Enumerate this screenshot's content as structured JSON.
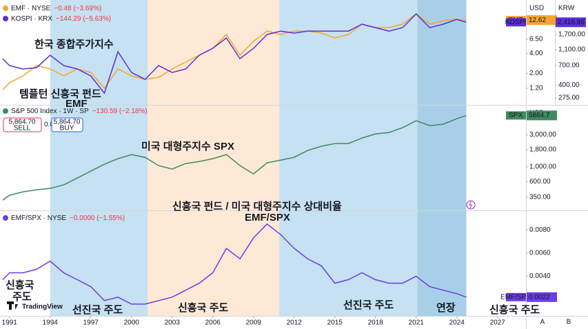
{
  "time_axis": {
    "xlim": [
      1990.3,
      2029.1
    ],
    "xticks": [
      1991,
      1994,
      1997,
      2000,
      2003,
      2006,
      2009,
      2012,
      2015,
      2018,
      2021,
      2024,
      2027
    ],
    "bands": [
      {
        "from": 1994.0,
        "to": 2001.2,
        "color": "#c6e1f1"
      },
      {
        "from": 2001.2,
        "to": 2010.9,
        "color": "#fde9d6"
      },
      {
        "from": 2010.9,
        "to": 2021.1,
        "color": "#c6e1f1"
      },
      {
        "from": 2021.1,
        "to": 2024.7,
        "color": "#a9cfe8"
      }
    ]
  },
  "chart_data": [
    {
      "type": "line",
      "log_scale": true,
      "y_unit": "USD",
      "y2_unit": "KRW",
      "x": [
        1990.5,
        1991,
        1992,
        1993,
        1994,
        1995,
        1996,
        1997,
        1998,
        1999,
        2000,
        2001,
        2002,
        2003,
        2004,
        2005,
        2006,
        2007,
        2008,
        2009,
        2010,
        2011,
        2012,
        2013,
        2014,
        2015,
        2016,
        2017,
        2018,
        2019,
        2020,
        2021,
        2022,
        2023,
        2024,
        2024.7
      ],
      "ylim": [
        0.71,
        23.5
      ],
      "yticks": [
        {
          "value": 6.5,
          "label": "6.50"
        },
        {
          "value": 4,
          "label": "4.00"
        },
        {
          "value": 2,
          "label": "2.00"
        },
        {
          "value": 1.2,
          "label": "1.20"
        }
      ],
      "y2lim": [
        235,
        4316
      ],
      "y2ticks": [
        {
          "value": 1700,
          "label": "1,700.00"
        },
        {
          "value": 1100,
          "label": "1,100.00"
        },
        {
          "value": 700,
          "label": "700.00"
        },
        {
          "value": 400,
          "label": "400.00"
        },
        {
          "value": 275,
          "label": "275.00"
        }
      ],
      "series": [
        {
          "name": "EMF · NYSE",
          "tag": "EMF",
          "change": "−0.48 (−3.69%)",
          "color": "#f5a52c",
          "values": [
            1.14,
            1.45,
            1.84,
            2.63,
            2.34,
            1.84,
            2.34,
            2.07,
            1.2,
            2.34,
            1.84,
            1.63,
            1.75,
            2.34,
            2.96,
            3.76,
            4.77,
            7.68,
            3.76,
            6.05,
            8.65,
            7.68,
            8.65,
            8.65,
            8.05,
            6.82,
            7.68,
            10.98,
            9.74,
            9.74,
            10.98,
            15.7,
            10.98,
            12.4,
            13.0,
            12.62
          ]
        },
        {
          "name": "KOSPI · KRX",
          "tag": "KOSPI",
          "change": "−144.29 (−5.63%)",
          "color": "#5b2fd9",
          "axis": "y2",
          "last_label": "2,416.86",
          "values": [
            850,
            697,
            632,
            657,
            939,
            697,
            632,
            518,
            316,
            1037,
            572,
            469,
            697,
            572,
            632,
            939,
            1144,
            1540,
            850,
            1144,
            1700,
            1877,
            1769,
            1877,
            1877,
            1877,
            1877,
            2288,
            2072,
            1877,
            2072,
            3079,
            2072,
            2288,
            2628,
            2416.86
          ]
        }
      ]
    },
    {
      "type": "line",
      "log_scale": true,
      "y_unit": "USD",
      "x": [
        1990.5,
        1991,
        1992,
        1993,
        1994,
        1995,
        1996,
        1997,
        1998,
        1999,
        2000,
        2001,
        2002,
        2003,
        2004,
        2005,
        2006,
        2007,
        2008,
        2009,
        2010,
        2011,
        2012,
        2013,
        2014,
        2015,
        2016,
        2017,
        2018,
        2019,
        2020,
        2021,
        2022,
        2023,
        2024,
        2024.7
      ],
      "ylim": [
        234,
        7865
      ],
      "yticks": [
        {
          "value": 3000,
          "label": "3,000.00"
        },
        {
          "value": 1800,
          "label": "1,800.00"
        },
        {
          "value": 1000,
          "label": "1,000.00"
        },
        {
          "value": 600,
          "label": "600.00"
        },
        {
          "value": 350,
          "label": "350.00"
        }
      ],
      "trade": {
        "sell_price": "5,864.70",
        "sell": "SELL",
        "spread": "0.00",
        "buy_price": "5,864.70",
        "buy": "BUY"
      },
      "series": [
        {
          "name": "S&P 500 Index · 1W · SP",
          "tag": "SPX",
          "change": "−130.59 (−2.18%)",
          "color": "#3f8a5f",
          "values": [
            318,
            375,
            423,
            454,
            476,
            536,
            680,
            862,
            1093,
            1322,
            1525,
            1386,
            1043,
            926,
            1119,
            1202,
            1322,
            1525,
            1043,
            784,
            1147,
            1260,
            1386,
            1757,
            2027,
            2229,
            2229,
            2696,
            3108,
            3260,
            3849,
            4883,
            4134,
            4335,
            5242,
            5864.7
          ]
        }
      ]
    },
    {
      "type": "line",
      "log_scale": false,
      "x": [
        1990.5,
        1991,
        1992,
        1993,
        1994,
        1995,
        1996,
        1997,
        1998,
        1999,
        2000,
        2001,
        2002,
        2003,
        2004,
        2005,
        2006,
        2007,
        2008,
        2009,
        2010,
        2011,
        2012,
        2013,
        2014,
        2015,
        2016,
        2017,
        2018,
        2019,
        2020,
        2021,
        2022,
        2023,
        2024,
        2024.7
      ],
      "ylim": [
        0.0007,
        0.0095
      ],
      "yticks": [
        {
          "value": 0.008,
          "label": "0.0080"
        },
        {
          "value": 0.006,
          "label": "0.0060"
        },
        {
          "value": 0.004,
          "label": "0.0040"
        }
      ],
      "series": [
        {
          "name": "EMF/SPX · NYSE",
          "tag": "EMF/SPX",
          "change": "−0.0000 (−1.55%)",
          "color": "#6a3de8",
          "values": [
            0.0037,
            0.0043,
            0.0043,
            0.0046,
            0.0053,
            0.0043,
            0.0037,
            0.0031,
            0.0019,
            0.0022,
            0.0016,
            0.0016,
            0.0019,
            0.0022,
            0.0028,
            0.0034,
            0.0043,
            0.0064,
            0.0055,
            0.0073,
            0.0085,
            0.0076,
            0.0064,
            0.0055,
            0.0049,
            0.0034,
            0.0037,
            0.0043,
            0.0037,
            0.0034,
            0.0034,
            0.004,
            0.0031,
            0.0028,
            0.0025,
            0.0022
          ]
        }
      ]
    }
  ],
  "annotations": [
    {
      "text": "한국 종합주가지수",
      "color": "#1c1a8c"
    },
    {
      "text": "템플턴 신흥국 펀드",
      "color": "#1c1a8c"
    },
    {
      "text": "EMF",
      "color": "#1c1a8c"
    },
    {
      "text": "미국 대형주지수 SPX",
      "color": "#1c1a8c"
    },
    {
      "text": "신흥국 펀드 / 미국 대형주지수 상대비율",
      "color": "#1c1a8c"
    },
    {
      "text": "EMF/SPX",
      "color": "#1c1a8c"
    },
    {
      "text": "신흥국",
      "color": "#e0141b"
    },
    {
      "text": "주도",
      "color": "#e0141b"
    },
    {
      "text": "선진국 주도",
      "color": "#1c1a8c"
    },
    {
      "text": "신흥국 주도",
      "color": "#e0141b"
    },
    {
      "text": "선진국 주도",
      "color": "#1c1a8c"
    },
    {
      "text": "연장",
      "color": "#1c1a8c"
    },
    {
      "text": "신흥국 주도",
      "color": "#e0141b"
    }
  ],
  "logo": "TradingView",
  "scale_buttons": [
    "A",
    "B"
  ]
}
